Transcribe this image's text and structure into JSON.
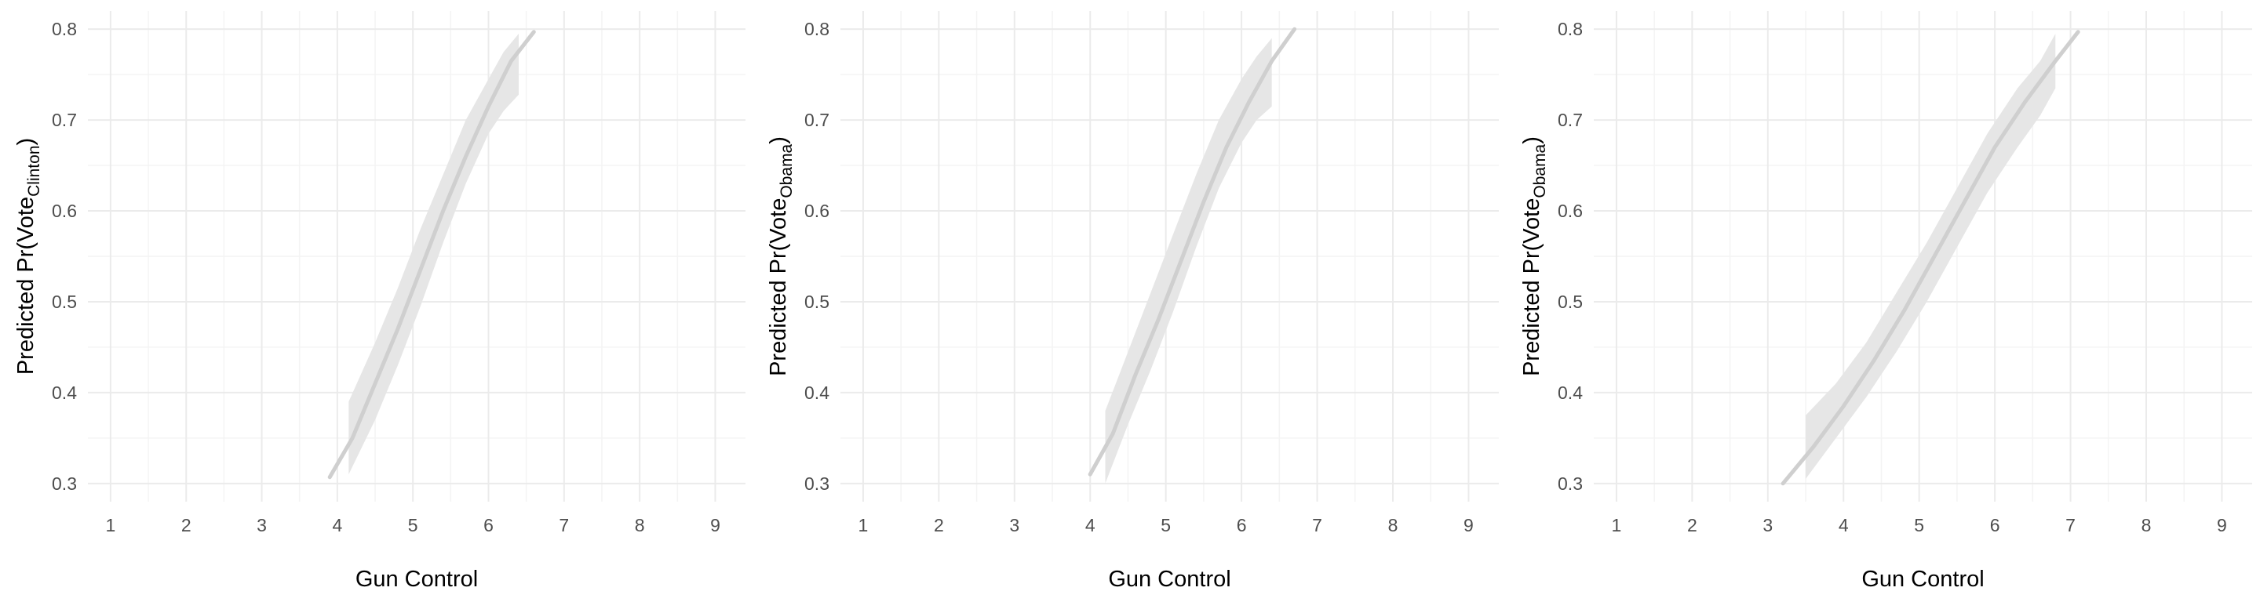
{
  "chart_data": [
    {
      "type": "line",
      "xlabel": "Gun Control",
      "ylabel": {
        "prefix": "Predicted Pr(Vote",
        "subscript": "Clinton",
        "suffix": ")"
      },
      "xlim": [
        0.7,
        9.4
      ],
      "ylim": [
        0.28,
        0.82
      ],
      "xticks": [
        1,
        2,
        3,
        4,
        5,
        6,
        7,
        8,
        9
      ],
      "yticks": [
        0.3,
        0.4,
        0.5,
        0.6,
        0.7,
        0.8
      ],
      "grid": true,
      "series": [
        {
          "x": [
            3.9,
            4.2,
            4.5,
            4.8,
            5.1,
            5.4,
            5.7,
            6.0,
            6.3,
            6.6
          ],
          "y": [
            0.307,
            0.35,
            0.41,
            0.47,
            0.535,
            0.6,
            0.66,
            0.715,
            0.765,
            0.797
          ]
        }
      ],
      "band": {
        "x": [
          4.15,
          4.5,
          4.8,
          5.1,
          5.4,
          5.7,
          6.0,
          6.2,
          6.4
        ],
        "lower": [
          0.31,
          0.37,
          0.43,
          0.495,
          0.565,
          0.63,
          0.685,
          0.71,
          0.728
        ],
        "upper": [
          0.39,
          0.455,
          0.515,
          0.58,
          0.64,
          0.7,
          0.745,
          0.775,
          0.795
        ]
      },
      "colors": {
        "line": "#cfcfcf",
        "band": "#e6e6e6"
      }
    },
    {
      "type": "line",
      "xlabel": "Gun Control",
      "ylabel": {
        "prefix": "Predicted Pr(Vote",
        "subscript": "Obama",
        "suffix": ")"
      },
      "xlim": [
        0.7,
        9.4
      ],
      "ylim": [
        0.28,
        0.82
      ],
      "xticks": [
        1,
        2,
        3,
        4,
        5,
        6,
        7,
        8,
        9
      ],
      "yticks": [
        0.3,
        0.4,
        0.5,
        0.6,
        0.7,
        0.8
      ],
      "grid": true,
      "series": [
        {
          "x": [
            4.0,
            4.3,
            4.6,
            4.9,
            5.2,
            5.5,
            5.8,
            6.1,
            6.4,
            6.7
          ],
          "y": [
            0.31,
            0.355,
            0.42,
            0.48,
            0.545,
            0.61,
            0.67,
            0.72,
            0.765,
            0.8
          ]
        }
      ],
      "band": {
        "x": [
          4.2,
          4.5,
          4.8,
          5.1,
          5.4,
          5.7,
          6.0,
          6.2,
          6.4
        ],
        "lower": [
          0.3,
          0.365,
          0.425,
          0.49,
          0.56,
          0.625,
          0.675,
          0.7,
          0.715
        ],
        "upper": [
          0.38,
          0.445,
          0.51,
          0.575,
          0.64,
          0.7,
          0.745,
          0.77,
          0.79
        ]
      },
      "colors": {
        "line": "#cfcfcf",
        "band": "#e6e6e6"
      }
    },
    {
      "type": "line",
      "xlabel": "Gun Control",
      "ylabel": {
        "prefix": "Predicted Pr(Vote",
        "subscript": "Obama",
        "suffix": ")"
      },
      "xlim": [
        0.7,
        9.4
      ],
      "ylim": [
        0.28,
        0.82
      ],
      "xticks": [
        1,
        2,
        3,
        4,
        5,
        6,
        7,
        8,
        9
      ],
      "yticks": [
        0.3,
        0.4,
        0.5,
        0.6,
        0.7,
        0.8
      ],
      "grid": true,
      "series": [
        {
          "x": [
            3.2,
            3.6,
            4.0,
            4.4,
            4.8,
            5.2,
            5.6,
            6.0,
            6.4,
            6.8,
            7.1
          ],
          "y": [
            0.3,
            0.34,
            0.385,
            0.435,
            0.49,
            0.55,
            0.61,
            0.67,
            0.72,
            0.765,
            0.797
          ]
        }
      ],
      "band": {
        "x": [
          3.5,
          3.9,
          4.3,
          4.7,
          5.1,
          5.5,
          5.9,
          6.3,
          6.6,
          6.8
        ],
        "lower": [
          0.305,
          0.35,
          0.395,
          0.445,
          0.5,
          0.56,
          0.62,
          0.67,
          0.705,
          0.735
        ],
        "upper": [
          0.375,
          0.41,
          0.455,
          0.51,
          0.565,
          0.625,
          0.685,
          0.735,
          0.765,
          0.795
        ]
      },
      "colors": {
        "line": "#cfcfcf",
        "band": "#e6e6e6"
      }
    }
  ]
}
